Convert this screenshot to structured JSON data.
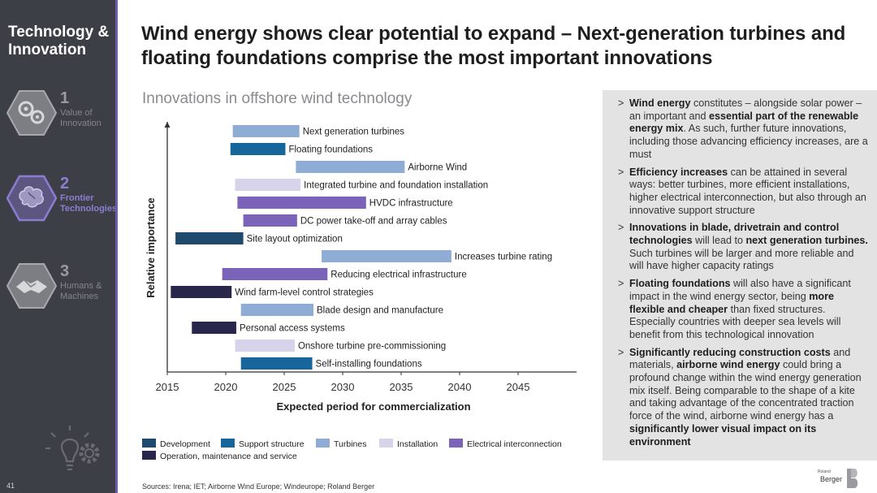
{
  "sidebar": {
    "title": "Technology & Innovation",
    "items": [
      {
        "num": "1",
        "label": "Value of Innovation",
        "icon": "gears-hexagon-icon"
      },
      {
        "num": "2",
        "label": "Frontier Technologies",
        "icon": "brain-hexagon-icon"
      },
      {
        "num": "3",
        "label": "Humans & Machines",
        "icon": "handshake-hexagon-icon"
      }
    ],
    "page_number": "41"
  },
  "header": {
    "title": "Wind energy shows clear potential to expand – Next-generation turbines and floating foundations comprise the most important innovations",
    "subtitle": "Innovations in offshore wind technology"
  },
  "colors": {
    "Development": "#1f4a6e",
    "Support structure": "#16669c",
    "Turbines": "#8fadd4",
    "Installation": "#d6d3ea",
    "Electrical interconnection": "#7a63b8",
    "Operation, maintenance and service": "#29264c"
  },
  "chart_data": {
    "type": "bar",
    "orientation": "horizontal-range",
    "xlabel": "Expected period for commercialization",
    "ylabel": "Relative importance",
    "xlim": [
      2015,
      2050
    ],
    "xticks": [
      "2015",
      "2020",
      "2025",
      "2030",
      "2035",
      "2040",
      "2045"
    ],
    "bars": [
      {
        "label": "Next generation turbines",
        "start": 2020.6,
        "end": 2026.3,
        "category": "Turbines"
      },
      {
        "label": "Floating foundations",
        "start": 2020.4,
        "end": 2025.1,
        "category": "Support structure"
      },
      {
        "label": "Airborne Wind",
        "start": 2026.0,
        "end": 2035.3,
        "category": "Turbines"
      },
      {
        "label": "Integrated turbine and foundation installation",
        "start": 2020.8,
        "end": 2026.4,
        "category": "Installation"
      },
      {
        "label": "HVDC infrastructure",
        "start": 2021.0,
        "end": 2032.0,
        "category": "Electrical interconnection"
      },
      {
        "label": "DC power take-off and array cables",
        "start": 2021.5,
        "end": 2026.1,
        "category": "Electrical interconnection"
      },
      {
        "label": "Site layout optimization",
        "start": 2015.7,
        "end": 2021.5,
        "category": "Development"
      },
      {
        "label": "Increases turbine rating",
        "start": 2028.2,
        "end": 2039.3,
        "category": "Turbines"
      },
      {
        "label": "Reducing electrical infrastructure",
        "start": 2019.7,
        "end": 2028.7,
        "category": "Electrical interconnection"
      },
      {
        "label": "Wind farm-level control strategies",
        "start": 2015.3,
        "end": 2020.5,
        "category": "Operation, maintenance and service"
      },
      {
        "label": "Blade design and manufacture",
        "start": 2021.3,
        "end": 2027.5,
        "category": "Turbines"
      },
      {
        "label": "Personal access systems",
        "start": 2017.1,
        "end": 2020.9,
        "category": "Operation, maintenance and service"
      },
      {
        "label": "Onshore turbine pre-commissioning",
        "start": 2020.8,
        "end": 2025.9,
        "category": "Installation"
      },
      {
        "label": "Self-installing foundations",
        "start": 2021.3,
        "end": 2027.4,
        "category": "Support structure"
      }
    ],
    "legend_position": "bottom"
  },
  "legend": [
    {
      "label": "Development",
      "key": "Development"
    },
    {
      "label": "Support structure",
      "key": "Support structure"
    },
    {
      "label": "Turbines",
      "key": "Turbines"
    },
    {
      "label": "Installation",
      "key": "Installation"
    },
    {
      "label": "Electrical interconnection",
      "key": "Electrical interconnection"
    },
    {
      "label": "Operation, maintenance and service",
      "key": "Operation, maintenance and service"
    }
  ],
  "sources": "Sources: Irena; IET; Airborne Wind Europe; Windeurope; Roland Berger",
  "panel": {
    "bullets": [
      [
        {
          "b": true,
          "t": "Wind energy"
        },
        {
          "b": false,
          "t": " constitutes – alongside solar power – an important and "
        },
        {
          "b": true,
          "t": "essential part of the renewable energy mix"
        },
        {
          "b": false,
          "t": ". As such, further future innovations, including those advancing efficiency increases, are a must"
        }
      ],
      [
        {
          "b": true,
          "t": "Efficiency increases"
        },
        {
          "b": false,
          "t": " can be attained in several ways: better turbines, more efficient installations, higher electrical interconnection, but also through an innovative support structure"
        }
      ],
      [
        {
          "b": true,
          "t": "Innovations in blade, drivetrain and control technologies"
        },
        {
          "b": false,
          "t": " will lead to "
        },
        {
          "b": true,
          "t": "next generation turbines."
        },
        {
          "b": false,
          "t": " Such turbines will be larger and more reliable and will have higher capacity ratings"
        }
      ],
      [
        {
          "b": true,
          "t": "Floating foundations"
        },
        {
          "b": false,
          "t": " will also have a significant impact in the wind energy sector, being "
        },
        {
          "b": true,
          "t": "more flexible and cheaper"
        },
        {
          "b": false,
          "t": " than fixed structures. Especially countries with deeper sea levels will benefit from this technological innovation"
        }
      ],
      [
        {
          "b": true,
          "t": "Significantly reducing construction costs"
        },
        {
          "b": false,
          "t": " and materials, "
        },
        {
          "b": true,
          "t": "airborne wind energy"
        },
        {
          "b": false,
          "t": " could bring a profound change within the wind energy generation mix itself. Being comparable to the shape of a kite and taking advantage of the concentrated traction force of the wind, airborne wind energy has a "
        },
        {
          "b": true,
          "t": "significantly lower visual impact on its environment"
        }
      ]
    ]
  },
  "logo": {
    "small": "Roland",
    "text": "Berger",
    "mark": "B"
  }
}
